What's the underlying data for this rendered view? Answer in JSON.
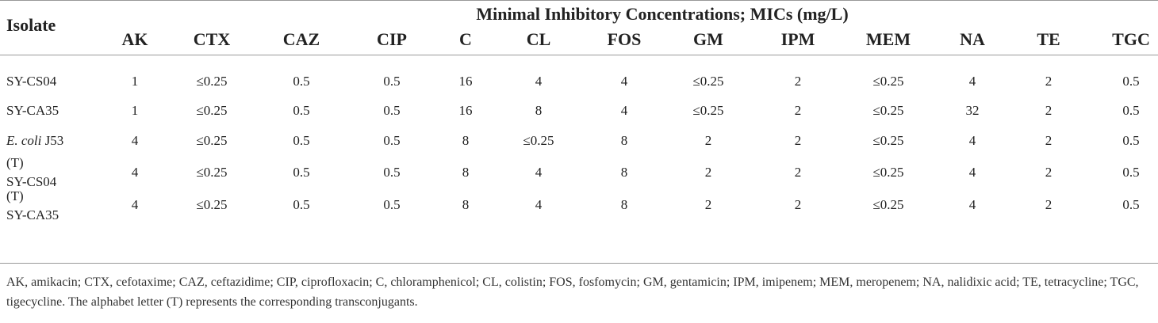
{
  "table": {
    "isolate_header": "Isolate",
    "span_header": "Minimal Inhibitory Concentrations; MICs (mg/L)",
    "columns": [
      "AK",
      "CTX",
      "CAZ",
      "CIP",
      "C",
      "CL",
      "FOS",
      "GM",
      "IPM",
      "MEM",
      "NA",
      "TE",
      "TGC"
    ],
    "rows": [
      {
        "isolate_lines": [
          "SY-CS04"
        ],
        "italic_prefix": "",
        "values": [
          "1",
          "≤0.25",
          "0.5",
          "0.5",
          "16",
          "4",
          "4",
          "≤0.25",
          "2",
          "≤0.25",
          "4",
          "2",
          "0.5"
        ]
      },
      {
        "isolate_lines": [
          "SY-CA35"
        ],
        "italic_prefix": "",
        "values": [
          "1",
          "≤0.25",
          "0.5",
          "0.5",
          "16",
          "8",
          "4",
          "≤0.25",
          "2",
          "≤0.25",
          "32",
          "2",
          "0.5"
        ]
      },
      {
        "isolate_lines": [
          " J53"
        ],
        "italic_prefix": "E. coli",
        "values": [
          "4",
          "≤0.25",
          "0.5",
          "0.5",
          "8",
          "≤0.25",
          "8",
          "2",
          "2",
          "≤0.25",
          "4",
          "2",
          "0.5"
        ]
      },
      {
        "isolate_lines": [
          "(T)",
          "SY-CS04"
        ],
        "italic_prefix": "",
        "values": [
          "4",
          "≤0.25",
          "0.5",
          "0.5",
          "8",
          "4",
          "8",
          "2",
          "2",
          "≤0.25",
          "4",
          "2",
          "0.5"
        ]
      },
      {
        "isolate_lines": [
          "(T)",
          "SY-CA35"
        ],
        "italic_prefix": "",
        "values": [
          "4",
          "≤0.25",
          "0.5",
          "0.5",
          "8",
          "4",
          "8",
          "2",
          "2",
          "≤0.25",
          "4",
          "2",
          "0.5"
        ]
      }
    ]
  },
  "footnote": "AK, amikacin; CTX, cefotaxime; CAZ, ceftazidime; CIP, ciprofloxacin; C, chloramphenicol; CL, colistin; FOS, fosfomycin; GM, gentamicin; IPM, imipenem; MEM, meropenem; NA, nalidixic acid; TE, tetracycline; TGC, tigecycline. The alphabet letter (T) represents the corresponding transconjugants."
}
